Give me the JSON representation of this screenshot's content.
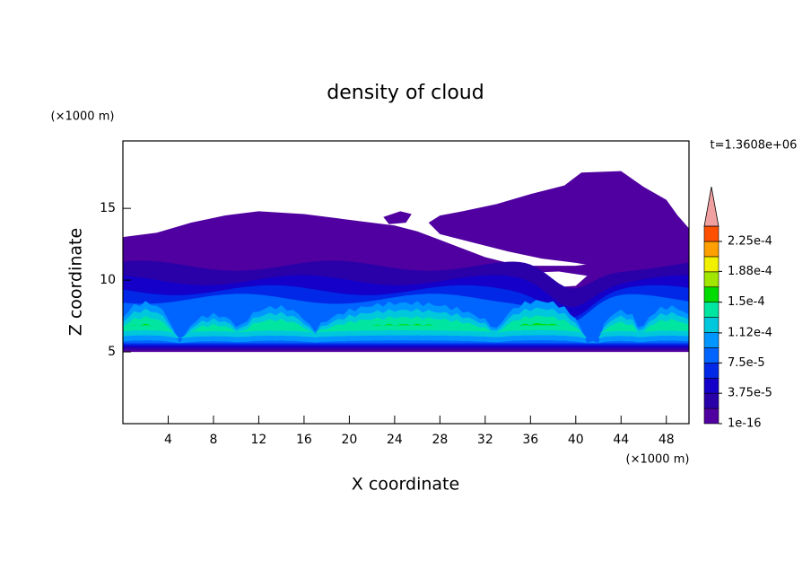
{
  "chart_data": {
    "type": "contour",
    "title": "density of cloud",
    "xlabel": "X coordinate",
    "ylabel": "Z coordinate",
    "x_unit": "(×1000 m)",
    "y_unit": "(×1000 m)",
    "annotation": "t=1.3608e+06",
    "xlim": [
      0,
      50
    ],
    "ylim": [
      0,
      19.7
    ],
    "xticks": [
      4,
      8,
      12,
      16,
      20,
      24,
      28,
      32,
      36,
      40,
      44,
      48
    ],
    "yticks": [
      5,
      10,
      15
    ],
    "colorbar": {
      "levels": [
        1e-16,
        1.875e-05,
        3.75e-05,
        5.625e-05,
        7.5e-05,
        9.375e-05,
        0.0001125,
        0.00013125,
        0.00015,
        0.00016875,
        0.0001875,
        0.00020625,
        0.000225
      ],
      "top": 0.00024375,
      "colors": [
        "#5000a0",
        "#2a00a8",
        "#1400c8",
        "#0028e6",
        "#0064ff",
        "#0096ff",
        "#00c8dc",
        "#00e6a0",
        "#00dc00",
        "#a0e600",
        "#f0f000",
        "#ffa000",
        "#ff5000"
      ],
      "top_color": "#ff1e00",
      "extend_color": "#f0a0a0",
      "ticks": [
        1e-16,
        {
          "value": 3.75e-05,
          "label": "3.75e-5"
        },
        {
          "value": 7.5e-05,
          "label": "7.5e-5"
        },
        {
          "value": 0.000112,
          "label": "1.12e-4"
        },
        {
          "value": 0.00015,
          "label": "1.5e-4"
        },
        {
          "value": 0.000188,
          "label": "1.88e-4"
        },
        {
          "value": 0.000225,
          "label": "2.25e-4"
        }
      ]
    }
  }
}
